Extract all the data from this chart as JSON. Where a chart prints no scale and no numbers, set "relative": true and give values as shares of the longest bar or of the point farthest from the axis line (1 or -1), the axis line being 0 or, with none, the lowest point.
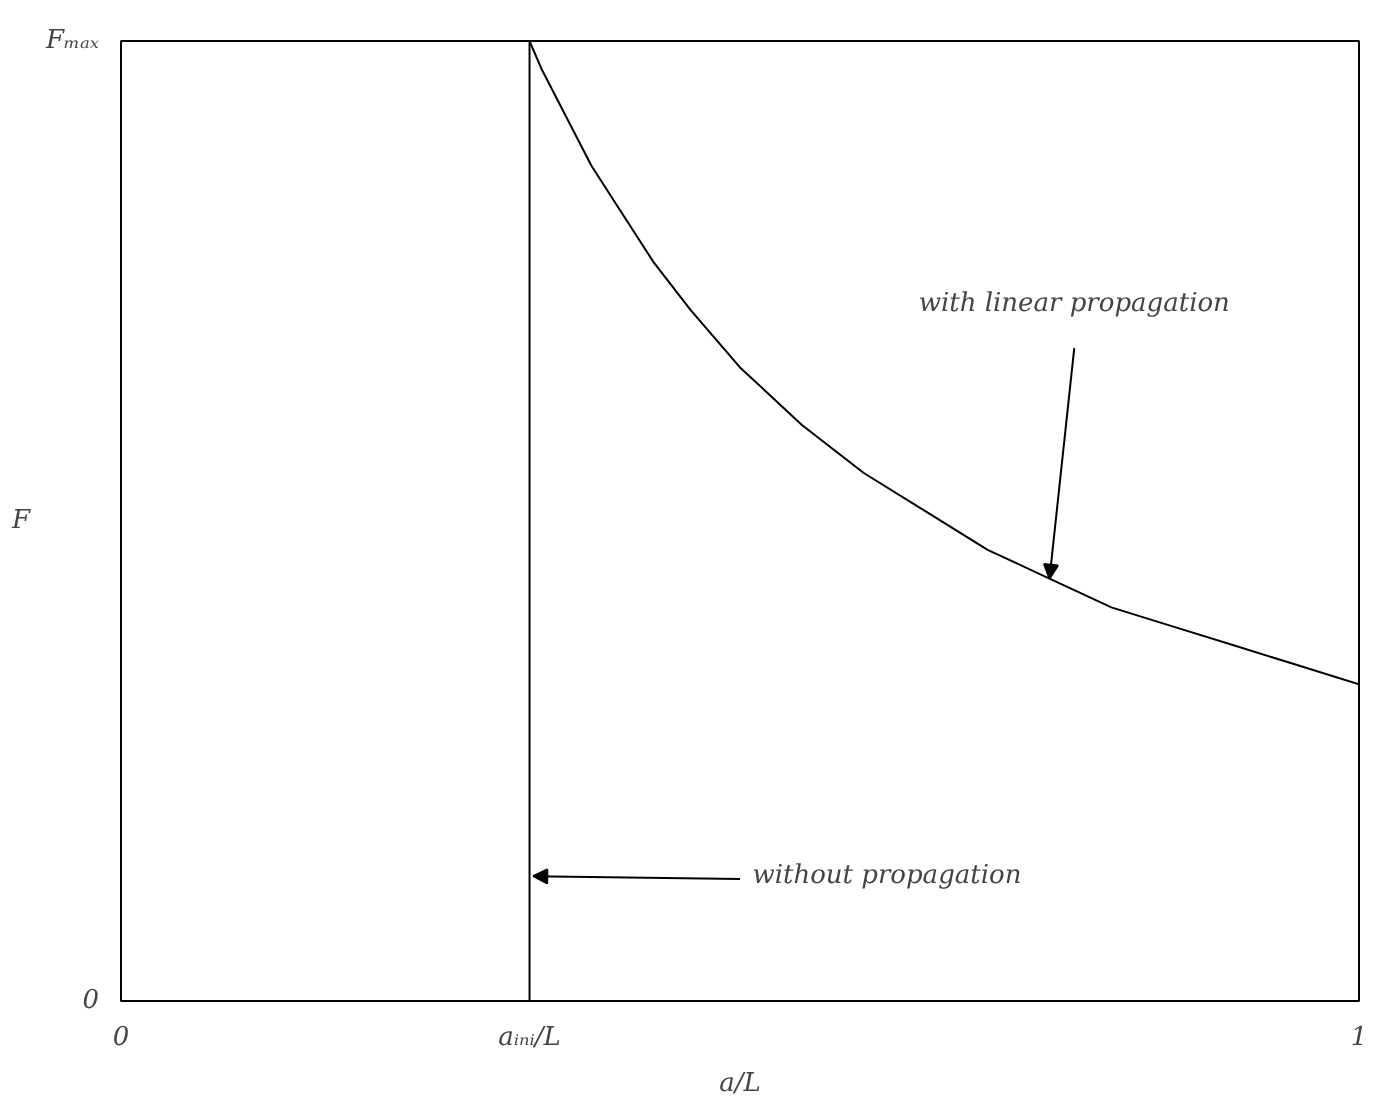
{
  "chart_data": {
    "type": "line",
    "xlabel": "a/L",
    "ylabel": "F",
    "relative": true,
    "xlim": [
      0,
      1
    ],
    "xticks": [
      0,
      {
        "value": 0.33,
        "label": "aᵢₙᵢ/L"
      },
      1
    ],
    "grid": false,
    "marker": "none",
    "line_style": "solid",
    "series": [
      {
        "color": "#000000",
        "x": [
          0.33,
          0.33,
          0.33
        ],
        "values": [
          0,
          0.13,
          1
        ]
      },
      {
        "color": "#000000",
        "x": [
          0.33,
          0.34,
          0.36,
          0.38,
          0.4,
          0.43,
          0.46,
          0.5,
          0.55,
          0.6,
          0.65,
          0.7,
          0.75,
          0.8,
          0.85,
          0.9,
          0.95,
          1.0
        ],
        "values": [
          1.0,
          0.97,
          0.92,
          0.87,
          0.83,
          0.77,
          0.72,
          0.66,
          0.6,
          0.55,
          0.51,
          0.47,
          0.44,
          0.41,
          0.39,
          0.37,
          0.35,
          0.33
        ]
      }
    ],
    "annotations": [
      "Fₘₐₓ",
      "0",
      {
        "text": "with linear propagation",
        "x": 0.75,
        "y": 0.44
      },
      {
        "text": "without propagation",
        "x": 0.33,
        "y": 0.13
      }
    ]
  }
}
